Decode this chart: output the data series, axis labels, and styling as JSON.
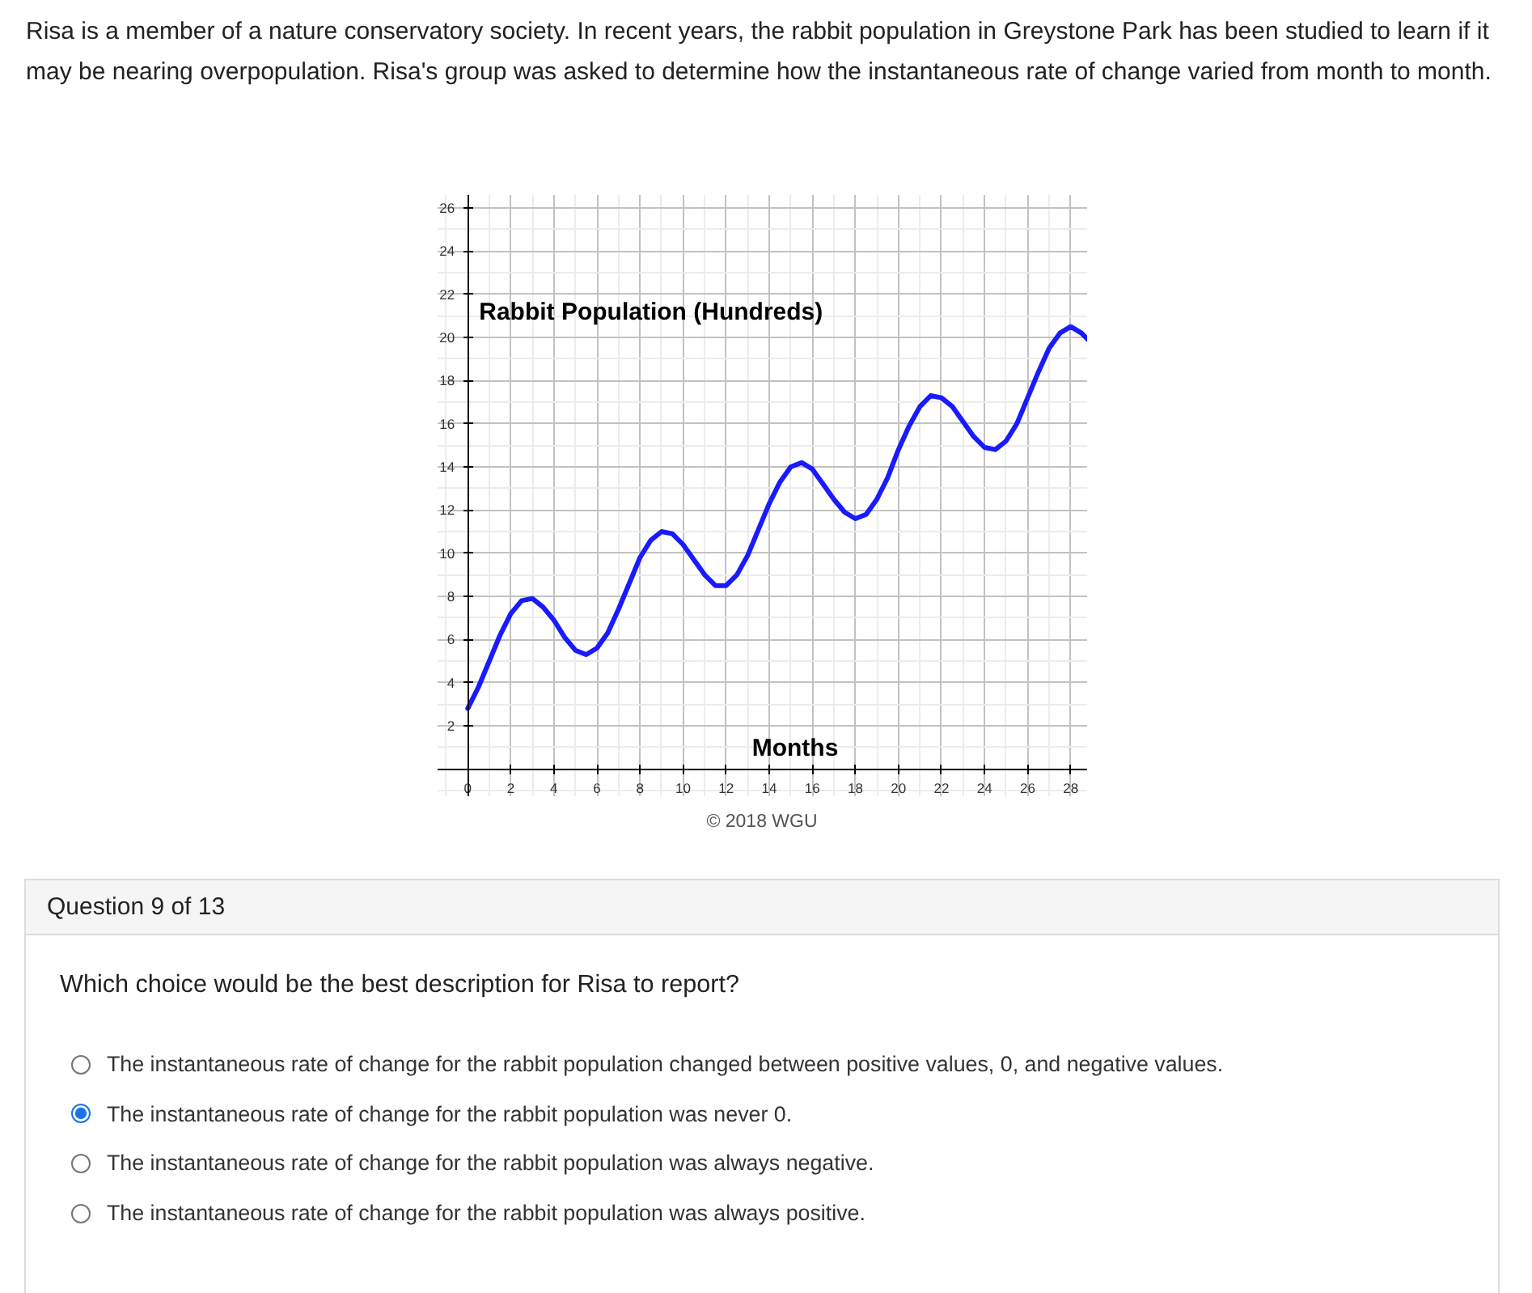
{
  "chart_data": {
    "type": "line",
    "xlabel": "Months",
    "ylabel": "Rabbit Population (Hundreds)",
    "annotations": [
      "Risa is a member of a nature conservatory society. In recent years, the rabbit population in Greystone Park has been studied to learn if it may be nearing overpopulation. Risa's group was asked to determine how the instantaneous rate of change varied from month to month.",
      "© 2018 WGU",
      "Question 9 of 13",
      "Which choice would be the best description for Risa to report?",
      "The instantaneous rate of change for the rabbit population changed between positive values, 0, and negative values.",
      "The instantaneous rate of change for the rabbit population was never 0.",
      "The instantaneous rate of change for the rabbit population was always negative.",
      "The instantaneous rate of change for the rabbit population was always positive."
    ],
    "x": [
      0,
      0.5,
      1,
      1.5,
      2,
      2.5,
      3,
      3.5,
      4,
      4.5,
      5,
      5.5,
      6,
      6.5,
      7,
      7.5,
      8,
      8.5,
      9,
      9.5,
      10,
      10.5,
      11,
      11.5,
      12,
      12.5,
      13,
      13.5,
      14,
      14.5,
      15,
      15.5,
      16,
      16.5,
      17,
      17.5,
      18,
      18.5,
      19,
      19.5,
      20,
      20.5,
      21,
      21.5,
      22,
      22.5,
      23,
      23.5,
      24,
      24.5,
      25,
      25.5,
      26,
      26.5,
      27,
      27.5,
      28,
      28.5,
      28.8
    ],
    "series": [
      {
        "color": "#1a1aff",
        "values": [
          2.8,
          3.8,
          5.0,
          6.2,
          7.2,
          7.8,
          7.9,
          7.5,
          6.9,
          6.1,
          5.5,
          5.3,
          5.6,
          6.3,
          7.4,
          8.6,
          9.8,
          10.6,
          11.0,
          10.9,
          10.4,
          9.7,
          9.0,
          8.5,
          8.5,
          9.0,
          9.9,
          11.1,
          12.3,
          13.3,
          14.0,
          14.2,
          13.9,
          13.2,
          12.5,
          11.9,
          11.6,
          11.8,
          12.5,
          13.5,
          14.8,
          15.9,
          16.8,
          17.3,
          17.2,
          16.8,
          16.1,
          15.4,
          14.9,
          14.8,
          15.2,
          16.0,
          17.2,
          18.4,
          19.5,
          20.2,
          20.5,
          20.2,
          19.9
        ]
      }
    ],
    "xlim": [
      -1.4,
      28.8
    ],
    "ylim": [
      -1.3,
      26.6
    ],
    "xticks": [
      0,
      2,
      4,
      6,
      8,
      10,
      12,
      14,
      16,
      18,
      20,
      22,
      24,
      26,
      28
    ],
    "yticks": [
      2,
      4,
      6,
      8,
      10,
      12,
      14,
      16,
      18,
      20,
      22,
      24,
      26
    ],
    "grid": true,
    "marker": "none",
    "line_style": "solid"
  }
}
